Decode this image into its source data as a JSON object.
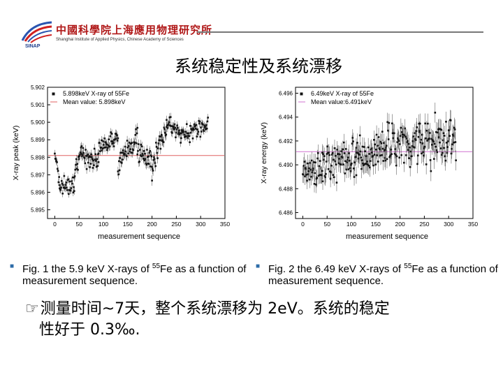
{
  "header": {
    "org_name_cn": "中國科學院上海應用物理研究所",
    "org_name_en": "Shanghai Institute of Applied Physics, Chinese Academy of Sciences",
    "abbr": "SINAP"
  },
  "slide_title": "系统稳定性及系统漂移",
  "chart_data": [
    {
      "type": "scatter",
      "xlabel": "measurement sequence",
      "ylabel": "X-ray peak (keV)",
      "xlim": [
        -15,
        350
      ],
      "ylim": [
        5.8945,
        5.902
      ],
      "xticks": [
        0,
        50,
        100,
        150,
        200,
        250,
        300,
        350
      ],
      "yticks": [
        5.895,
        5.896,
        5.897,
        5.898,
        5.899,
        5.9,
        5.901,
        5.902
      ],
      "legend_position": "top-left",
      "colors": {
        "series": "#111111",
        "mean": "#e06060",
        "errorbar": "#444444"
      },
      "series": [
        {
          "name": "5.898keV X-ray of 55Fe",
          "segments": [
            {
              "x_start": 0,
              "x_end": 10,
              "y_start": 5.8985,
              "y_end": 5.8965,
              "noise": 0.00035
            },
            {
              "x_start": 10,
              "x_end": 40,
              "y_start": 5.8963,
              "y_end": 5.8963,
              "noise": 0.00035
            },
            {
              "x_start": 40,
              "x_end": 55,
              "y_start": 5.8968,
              "y_end": 5.8985,
              "noise": 0.0004
            },
            {
              "x_start": 55,
              "x_end": 90,
              "y_start": 5.8982,
              "y_end": 5.8978,
              "noise": 0.00045
            },
            {
              "x_start": 90,
              "x_end": 130,
              "y_start": 5.8985,
              "y_end": 5.899,
              "noise": 0.0004
            },
            {
              "x_start": 130,
              "x_end": 170,
              "y_start": 5.8975,
              "y_end": 5.8993,
              "noise": 0.00045
            },
            {
              "x_start": 170,
              "x_end": 200,
              "y_start": 5.8982,
              "y_end": 5.8978,
              "noise": 0.00045
            },
            {
              "x_start": 200,
              "x_end": 230,
              "y_start": 5.8975,
              "y_end": 5.8998,
              "noise": 0.0005
            },
            {
              "x_start": 230,
              "x_end": 260,
              "y_start": 5.9,
              "y_end": 5.8993,
              "noise": 0.0004
            },
            {
              "x_start": 260,
              "x_end": 315,
              "y_start": 5.8993,
              "y_end": 5.8998,
              "noise": 0.00035
            }
          ],
          "count": 310
        },
        {
          "name": "Mean value: 5.898keV",
          "value": 5.8981
        }
      ]
    },
    {
      "type": "scatter",
      "xlabel": "measurement sequence",
      "ylabel": "X-ray energy (keV)",
      "xlim": [
        -15,
        350
      ],
      "ylim": [
        6.4855,
        6.4965
      ],
      "xticks": [
        0,
        50,
        100,
        150,
        200,
        250,
        300,
        350
      ],
      "yticks": [
        6.486,
        6.488,
        6.49,
        6.492,
        6.494,
        6.496
      ],
      "legend_position": "top-left",
      "colors": {
        "series": "#111111",
        "mean": "#d070d0",
        "errorbar": "#444444"
      },
      "series": [
        {
          "name": "6.49keV X-ray of 55Fe",
          "segments": [
            {
              "x_start": 0,
              "x_end": 40,
              "y_start": 6.4895,
              "y_end": 6.4898,
              "noise": 0.0012
            },
            {
              "x_start": 40,
              "x_end": 110,
              "y_start": 6.4902,
              "y_end": 6.4905,
              "noise": 0.0012
            },
            {
              "x_start": 110,
              "x_end": 170,
              "y_start": 6.4908,
              "y_end": 6.4912,
              "noise": 0.0013
            },
            {
              "x_start": 170,
              "x_end": 240,
              "y_start": 6.4915,
              "y_end": 6.4918,
              "noise": 0.0013
            },
            {
              "x_start": 240,
              "x_end": 315,
              "y_start": 6.4918,
              "y_end": 6.4922,
              "noise": 0.0014
            }
          ],
          "count": 300
        },
        {
          "name": "Mean value:6.491keV",
          "value": 6.4911
        }
      ]
    }
  ],
  "captions": {
    "fig1": {
      "pre": "Fig. 1 the 5.9 keV X-rays of ",
      "sup": "55",
      "post": "Fe as a function of measurement sequence."
    },
    "fig2": {
      "pre": "Fig. 2 the 6.49 keV X-rays of ",
      "sup": "55",
      "post": "Fe as a function of measurement sequence."
    }
  },
  "conclusion": {
    "line1": "测量时间~7天，整个系统漂移为 2eV。系统的稳定",
    "line2": "性好于 0.3‰."
  }
}
